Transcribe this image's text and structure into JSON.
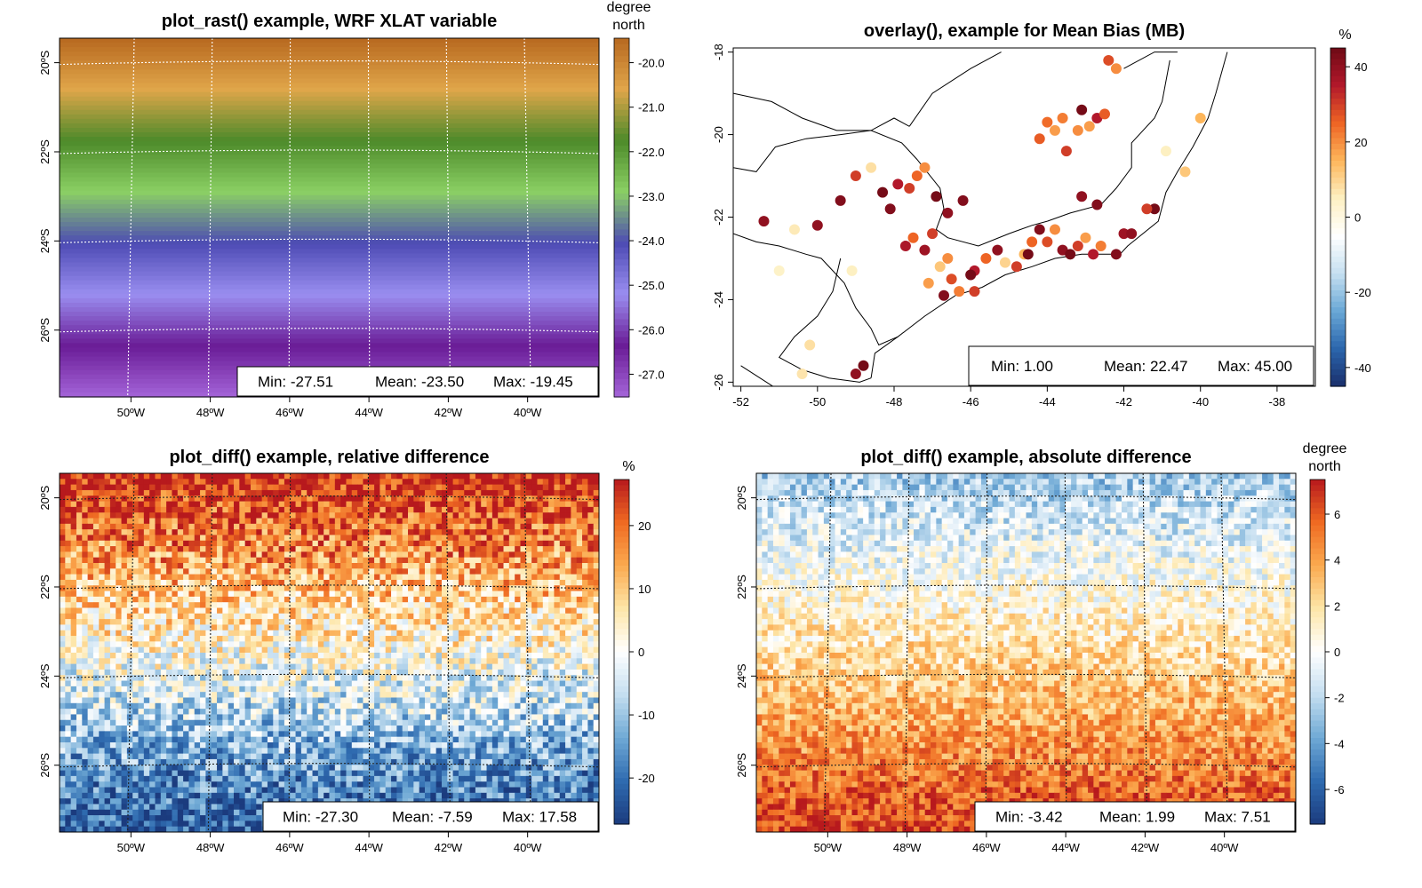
{
  "chart_data": [
    {
      "id": "p1",
      "type": "heatmap",
      "title": "plot_rast() example, WRF XLAT variable",
      "legend_title": [
        "degree",
        "north"
      ],
      "x_ticks": [
        {
          "v": -50,
          "label": "50ºW"
        },
        {
          "v": -48,
          "label": "48ºW"
        },
        {
          "v": -46,
          "label": "46ºW"
        },
        {
          "v": -44,
          "label": "44ºW"
        },
        {
          "v": -42,
          "label": "42ºW"
        },
        {
          "v": -40,
          "label": "40ºW"
        }
      ],
      "y_ticks": [
        {
          "v": -20,
          "label": "20ºS"
        },
        {
          "v": -22,
          "label": "22ºS"
        },
        {
          "v": -24,
          "label": "24ºS"
        },
        {
          "v": -26,
          "label": "26ºS"
        }
      ],
      "xlim": [
        -51.8,
        -38.2
      ],
      "ylim": [
        -27.5,
        -19.45
      ],
      "legend_ticks": [
        -20.0,
        -21.0,
        -22.0,
        -23.0,
        -24.0,
        -25.0,
        -26.0,
        -27.0
      ],
      "legend_range": [
        -27.51,
        -19.45
      ],
      "palette": [
        "#a465d9",
        "#6a1c96",
        "#9a8ef0",
        "#4d4bb4",
        "#8bd064",
        "#4d8a2a",
        "#e0a64a",
        "#b7681f"
      ],
      "grid": "dotted",
      "stats": {
        "min": "Min: -27.51",
        "mean": "Mean: -23.50",
        "max": "Max: -19.45"
      }
    },
    {
      "id": "p2",
      "type": "scatter",
      "title": "overlay(), example for Mean Bias (MB)",
      "legend_title": [
        "%"
      ],
      "x_ticks": [
        {
          "v": -52,
          "label": "-52"
        },
        {
          "v": -50,
          "label": "-50"
        },
        {
          "v": -48,
          "label": "-48"
        },
        {
          "v": -46,
          "label": "-46"
        },
        {
          "v": -44,
          "label": "-44"
        },
        {
          "v": -42,
          "label": "-42"
        },
        {
          "v": -40,
          "label": "-40"
        },
        {
          "v": -38,
          "label": "-38"
        }
      ],
      "y_ticks": [
        {
          "v": -18,
          "label": "-18"
        },
        {
          "v": -20,
          "label": "-20"
        },
        {
          "v": -22,
          "label": "-22"
        },
        {
          "v": -24,
          "label": "-24"
        },
        {
          "v": -26,
          "label": "-26"
        }
      ],
      "xlim": [
        -52.2,
        -37.0
      ],
      "ylim": [
        -26.1,
        -17.9
      ],
      "legend_ticks": [
        40,
        20,
        0,
        -20,
        -40
      ],
      "legend_range": [
        -45,
        45
      ],
      "palette": [
        "#1a2f6b",
        "#2b66ad",
        "#6aa8d6",
        "#c6e0f1",
        "#ffffff",
        "#fdf0c2",
        "#fdb65b",
        "#ee6424",
        "#b2182b",
        "#6e0a15"
      ],
      "points": [
        [
          -51.4,
          -22.1,
          40
        ],
        [
          -50.0,
          -22.2,
          40
        ],
        [
          -49.4,
          -21.6,
          42
        ],
        [
          -49.0,
          -21.0,
          30
        ],
        [
          -48.6,
          -20.8,
          8
        ],
        [
          -48.3,
          -21.4,
          44
        ],
        [
          -48.1,
          -21.8,
          42
        ],
        [
          -47.9,
          -21.2,
          35
        ],
        [
          -47.6,
          -21.3,
          30
        ],
        [
          -47.4,
          -21.0,
          25
        ],
        [
          -47.2,
          -20.8,
          20
        ],
        [
          -46.9,
          -21.5,
          44
        ],
        [
          -46.6,
          -21.9,
          40
        ],
        [
          -46.2,
          -21.6,
          42
        ],
        [
          -47.7,
          -22.7,
          36
        ],
        [
          -47.5,
          -22.5,
          25
        ],
        [
          -47.2,
          -22.8,
          38
        ],
        [
          -47.0,
          -22.4,
          30
        ],
        [
          -46.8,
          -23.2,
          12
        ],
        [
          -46.6,
          -23.0,
          20
        ],
        [
          -46.5,
          -23.5,
          28
        ],
        [
          -46.3,
          -23.8,
          22
        ],
        [
          -46.7,
          -23.9,
          42
        ],
        [
          -47.1,
          -23.6,
          18
        ],
        [
          -45.9,
          -23.3,
          35
        ],
        [
          -45.6,
          -23.0,
          25
        ],
        [
          -45.3,
          -22.8,
          40
        ],
        [
          -45.1,
          -23.1,
          10
        ],
        [
          -44.8,
          -23.2,
          30
        ],
        [
          -44.6,
          -22.9,
          15
        ],
        [
          -44.4,
          -22.6,
          25
        ],
        [
          -44.2,
          -22.3,
          42
        ],
        [
          -44.0,
          -22.6,
          28
        ],
        [
          -43.8,
          -22.3,
          20
        ],
        [
          -43.6,
          -22.8,
          40
        ],
        [
          -43.4,
          -22.9,
          44
        ],
        [
          -43.2,
          -22.7,
          30
        ],
        [
          -43.0,
          -22.5,
          18
        ],
        [
          -42.8,
          -22.9,
          35
        ],
        [
          -42.6,
          -22.7,
          22
        ],
        [
          -42.2,
          -22.9,
          42
        ],
        [
          -42.0,
          -22.4,
          38
        ],
        [
          -41.8,
          -22.4,
          40
        ],
        [
          -41.2,
          -21.8,
          44
        ],
        [
          -41.4,
          -21.8,
          30
        ],
        [
          -43.1,
          -21.5,
          40
        ],
        [
          -42.7,
          -21.7,
          42
        ],
        [
          -40.0,
          -19.6,
          15
        ],
        [
          -40.9,
          -20.4,
          5
        ],
        [
          -40.4,
          -20.9,
          12
        ],
        [
          -44.0,
          -19.7,
          24
        ],
        [
          -43.8,
          -19.9,
          18
        ],
        [
          -43.6,
          -19.6,
          22
        ],
        [
          -44.2,
          -20.1,
          26
        ],
        [
          -43.5,
          -20.4,
          30
        ],
        [
          -43.2,
          -19.9,
          20
        ],
        [
          -42.9,
          -19.8,
          18
        ],
        [
          -42.7,
          -19.6,
          35
        ],
        [
          -43.1,
          -19.4,
          44
        ],
        [
          -42.4,
          -18.2,
          28
        ],
        [
          -42.2,
          -18.4,
          20
        ],
        [
          -42.5,
          -19.5,
          26
        ],
        [
          -49.1,
          -23.3,
          5
        ],
        [
          -50.6,
          -22.3,
          6
        ],
        [
          -51.0,
          -23.3,
          4
        ],
        [
          -50.2,
          -25.1,
          8
        ],
        [
          -50.4,
          -25.8,
          7
        ],
        [
          -48.8,
          -25.6,
          44
        ],
        [
          -49.0,
          -25.8,
          40
        ],
        [
          -45.9,
          -23.8,
          30
        ],
        [
          -44.5,
          -22.9,
          44
        ],
        [
          -46.0,
          -23.4,
          44
        ]
      ],
      "stats": {
        "min": "Min: 1.00",
        "mean": "Mean: 22.47",
        "max": "Max: 45.00"
      }
    },
    {
      "id": "p3",
      "type": "heatmap",
      "title": "plot_diff() example, relative difference",
      "legend_title": [
        "%"
      ],
      "x_ticks": [
        {
          "v": -50,
          "label": "50ºW"
        },
        {
          "v": -48,
          "label": "48ºW"
        },
        {
          "v": -46,
          "label": "46ºW"
        },
        {
          "v": -44,
          "label": "44ºW"
        },
        {
          "v": -42,
          "label": "42ºW"
        },
        {
          "v": -40,
          "label": "40ºW"
        }
      ],
      "y_ticks": [
        {
          "v": -20,
          "label": "20ºS"
        },
        {
          "v": -22,
          "label": "22ºS"
        },
        {
          "v": -24,
          "label": "24ºS"
        },
        {
          "v": -26,
          "label": "26ºS"
        }
      ],
      "xlim": [
        -51.8,
        -38.2
      ],
      "ylim": [
        -27.5,
        -19.45
      ],
      "legend_ticks": [
        20,
        10,
        0,
        -10,
        -20
      ],
      "legend_range": [
        -27.3,
        27.3
      ],
      "palette": [
        "#1b3b7e",
        "#2f6bb0",
        "#6fa9d5",
        "#c4def0",
        "#ffffff",
        "#fde6a8",
        "#fbaa4f",
        "#ef6a22",
        "#b7191d"
      ],
      "grid": "dotted",
      "stats": {
        "min": "Min: -27.30",
        "mean": "Mean: -7.59",
        "max": "Max: 17.58"
      }
    },
    {
      "id": "p4",
      "type": "heatmap",
      "title": "plot_diff() example, absolute difference",
      "legend_title": [
        "degree",
        "north"
      ],
      "x_ticks": [
        {
          "v": -50,
          "label": "50ºW"
        },
        {
          "v": -48,
          "label": "48ºW"
        },
        {
          "v": -46,
          "label": "46ºW"
        },
        {
          "v": -44,
          "label": "44ºW"
        },
        {
          "v": -42,
          "label": "42ºW"
        },
        {
          "v": -40,
          "label": "40ºW"
        }
      ],
      "y_ticks": [
        {
          "v": -20,
          "label": "20ºS"
        },
        {
          "v": -22,
          "label": "22ºS"
        },
        {
          "v": -24,
          "label": "24ºS"
        },
        {
          "v": -26,
          "label": "26ºS"
        }
      ],
      "xlim": [
        -51.8,
        -38.2
      ],
      "ylim": [
        -27.5,
        -19.45
      ],
      "legend_ticks": [
        6,
        4,
        2,
        0,
        -2,
        -4,
        -6
      ],
      "legend_range": [
        -7.51,
        7.51
      ],
      "palette": [
        "#1b3b7e",
        "#2f6bb0",
        "#6fa9d5",
        "#c4def0",
        "#ffffff",
        "#fde6a8",
        "#fbaa4f",
        "#ef6a22",
        "#b7191d"
      ],
      "grid": "dotted",
      "stats": {
        "min": "Min: -3.42",
        "mean": "Mean: 1.99",
        "max": "Max: 7.51"
      }
    }
  ]
}
